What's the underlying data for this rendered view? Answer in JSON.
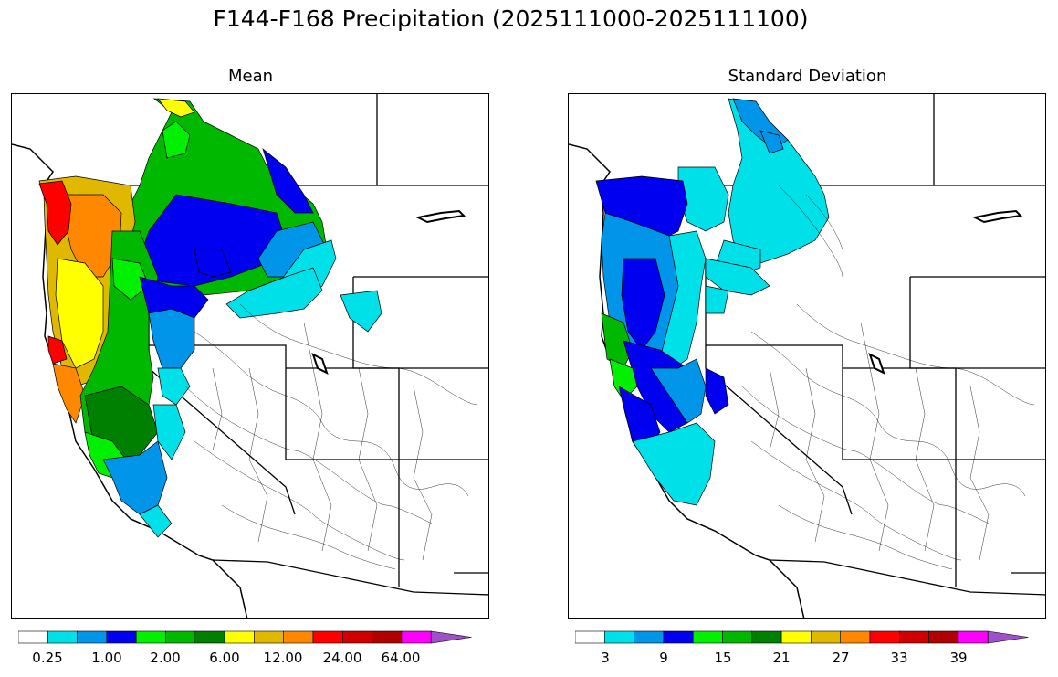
{
  "figure_title": "F144-F168 Precipitation (2025111000-2025111100)",
  "panels": [
    {
      "title": "Mean",
      "colorbar": {
        "colors": [
          "#ffffff",
          "#00e0e8",
          "#0095e8",
          "#0000f0",
          "#00f000",
          "#00b800",
          "#008000",
          "#ffff00",
          "#e0b800",
          "#ff8800",
          "#ff0000",
          "#d00000",
          "#b00000",
          "#ff00ff",
          "#a050c8"
        ],
        "tick_labels": [
          "0.25",
          "1.00",
          "2.00",
          "6.00",
          "12.00",
          "24.00",
          "64.00"
        ]
      }
    },
    {
      "title": "Standard Deviation",
      "colorbar": {
        "colors": [
          "#ffffff",
          "#00e0e8",
          "#0095e8",
          "#0000f0",
          "#00f000",
          "#00b800",
          "#008000",
          "#ffff00",
          "#e0b800",
          "#ff8800",
          "#ff0000",
          "#d00000",
          "#b00000",
          "#ff00ff",
          "#a050c8"
        ],
        "tick_labels": [
          "3",
          "9",
          "15",
          "21",
          "27",
          "33",
          "39"
        ]
      }
    }
  ],
  "chart_data": [
    {
      "type": "choropleth-map",
      "title": "Mean",
      "region": "Western United States river basins",
      "legend_levels": [
        "0.25",
        "1.00",
        "2.00",
        "6.00",
        "12.00",
        "24.00",
        "64.00"
      ],
      "pattern": "highest values (red/orange/yellow) along Pacific coast of Oregon and Washington; green over Cascades and northern Rockies; blue/cyan transition inland; white (below lowest level) across Great Basin, Colorado Plateau and southwest"
    },
    {
      "type": "choropleth-map",
      "title": "Standard Deviation",
      "region": "Western United States river basins",
      "legend_levels": [
        "3",
        "9",
        "15",
        "21",
        "27",
        "33",
        "39"
      ],
      "pattern": "dark blue and green along Oregon/northern California coast; cyan/light blue over Washington, Idaho, Montana basins; white across interior and southwest"
    }
  ]
}
